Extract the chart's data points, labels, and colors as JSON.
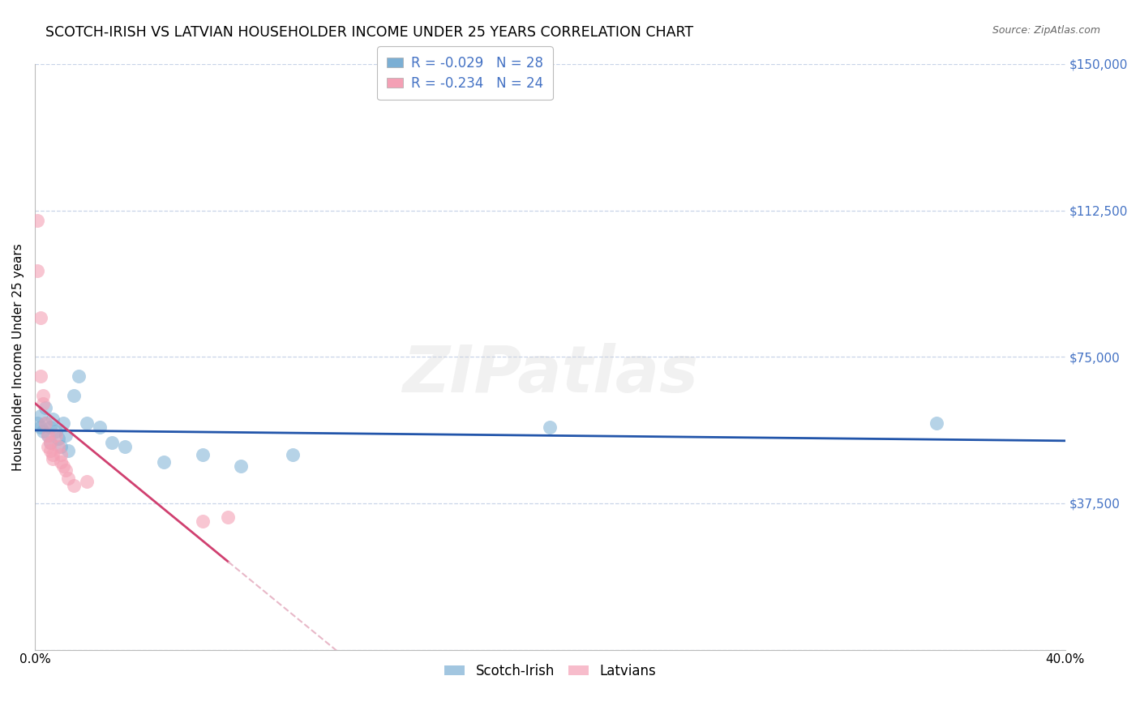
{
  "title": "SCOTCH-IRISH VS LATVIAN HOUSEHOLDER INCOME UNDER 25 YEARS CORRELATION CHART",
  "source": "Source: ZipAtlas.com",
  "ylabel": "Householder Income Under 25 years",
  "xlim": [
    0.0,
    0.4
  ],
  "ylim": [
    0,
    150000
  ],
  "yticks": [
    0,
    37500,
    75000,
    112500,
    150000
  ],
  "ytick_labels": [
    "",
    "$37,500",
    "$75,000",
    "$112,500",
    "$150,000"
  ],
  "xticks": [
    0.0,
    0.1,
    0.2,
    0.3,
    0.4
  ],
  "xtick_labels": [
    "0.0%",
    "",
    "",
    "",
    "40.0%"
  ],
  "legend_si_R": "-0.029",
  "legend_si_N": "28",
  "legend_lv_R": "-0.234",
  "legend_lv_N": "24",
  "si_color": "#7bafd4",
  "lv_color": "#f4a0b5",
  "si_line_color": "#2255aa",
  "lv_line_color": "#d04070",
  "lv_dash_color": "#e8b8c8",
  "grid_color": "#c8d4e8",
  "background_color": "#ffffff",
  "right_tick_color": "#4472c4",
  "legend_text_color": "#4472c4",
  "watermark_text": "ZIPatlas",
  "title_fontsize": 12.5,
  "tick_fontsize": 11,
  "ylabel_fontsize": 11,
  "scotch_irish_x": [
    0.001,
    0.002,
    0.002,
    0.003,
    0.004,
    0.004,
    0.005,
    0.006,
    0.006,
    0.007,
    0.008,
    0.009,
    0.01,
    0.011,
    0.012,
    0.013,
    0.015,
    0.017,
    0.02,
    0.025,
    0.03,
    0.035,
    0.05,
    0.065,
    0.08,
    0.1,
    0.2,
    0.35
  ],
  "scotch_irish_y": [
    58000,
    57000,
    60000,
    56000,
    62000,
    58000,
    55000,
    57000,
    53000,
    59000,
    56000,
    54000,
    52000,
    58000,
    55000,
    51000,
    65000,
    70000,
    58000,
    57000,
    53000,
    52000,
    48000,
    50000,
    47000,
    50000,
    57000,
    58000
  ],
  "latvian_x": [
    0.001,
    0.001,
    0.002,
    0.002,
    0.003,
    0.003,
    0.004,
    0.005,
    0.005,
    0.006,
    0.006,
    0.007,
    0.007,
    0.008,
    0.009,
    0.01,
    0.01,
    0.011,
    0.012,
    0.013,
    0.015,
    0.02,
    0.065,
    0.075
  ],
  "latvian_y": [
    110000,
    97000,
    85000,
    70000,
    65000,
    63000,
    58000,
    55000,
    52000,
    53000,
    51000,
    50000,
    49000,
    55000,
    52000,
    50000,
    48000,
    47000,
    46000,
    44000,
    42000,
    43000,
    33000,
    34000
  ]
}
